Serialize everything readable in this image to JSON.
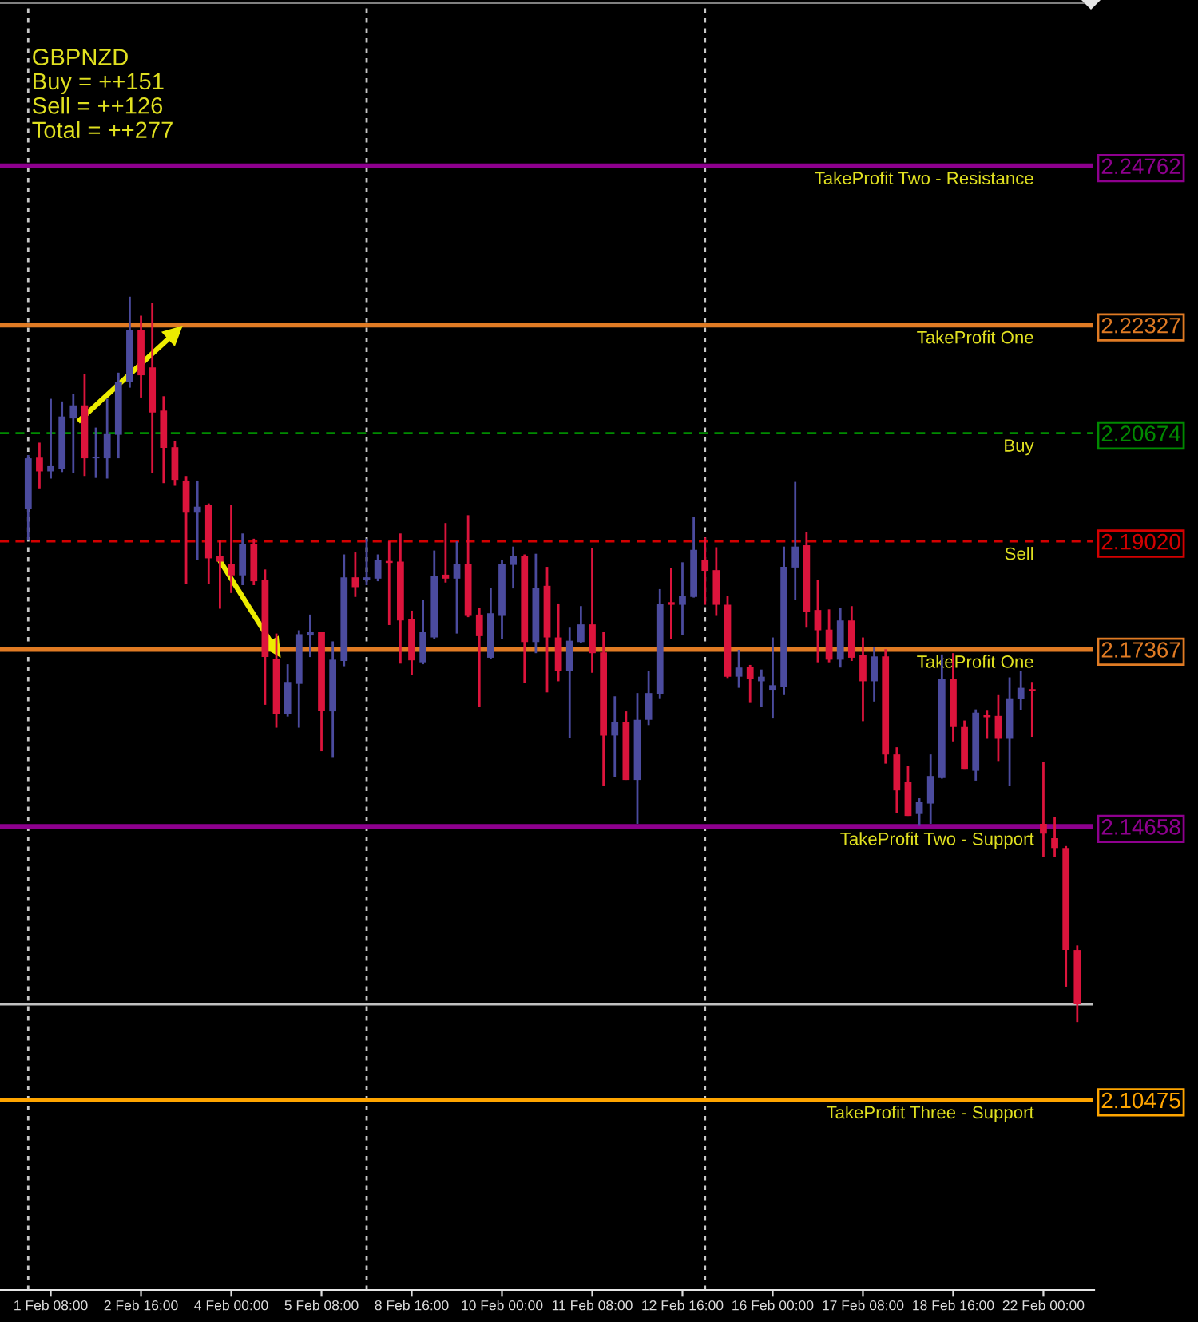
{
  "chart_data": {
    "type": "candlestick",
    "title": "GBPNZD",
    "annotations": [
      "Buy = ++151",
      "Sell = ++126",
      "Total = ++277"
    ],
    "categories": [
      null,
      null,
      "1 Feb 08:00",
      null,
      null,
      null,
      null,
      null,
      null,
      null,
      "2 Feb 16:00",
      null,
      null,
      null,
      null,
      null,
      null,
      null,
      "4 Feb 00:00",
      null,
      null,
      null,
      null,
      null,
      null,
      null,
      "5 Feb 08:00",
      null,
      null,
      null,
      null,
      null,
      null,
      null,
      "8 Feb 16:00",
      null,
      null,
      null,
      null,
      null,
      null,
      null,
      "10 Feb 00:00",
      null,
      null,
      null,
      null,
      null,
      null,
      null,
      "11 Feb 08:00",
      null,
      null,
      null,
      null,
      null,
      null,
      null,
      "12 Feb 16:00",
      null,
      null,
      null,
      null,
      null,
      null,
      null,
      "16 Feb 00:00",
      null,
      null,
      null,
      null,
      null,
      null,
      null,
      "17 Feb 08:00",
      null,
      null,
      null,
      null,
      null,
      null,
      null,
      "18 Feb 16:00",
      null,
      null,
      null,
      null,
      null,
      null,
      null,
      "22 Feb 00:00",
      null,
      null,
      null
    ],
    "ohlc": [
      [
        2.1951,
        2.2034,
        2.1904,
        2.2029
      ],
      [
        2.203,
        2.2053,
        2.1983,
        2.2009
      ],
      [
        2.2009,
        2.212,
        2.1998,
        2.2017
      ],
      [
        2.2013,
        2.2116,
        2.2008,
        2.2093
      ],
      [
        2.209,
        2.2127,
        2.2006,
        2.211
      ],
      [
        2.211,
        2.2158,
        2.2002,
        2.2029
      ],
      [
        2.2029,
        2.2076,
        2.1999,
        2.2031
      ],
      [
        2.2029,
        2.212,
        2.1998,
        2.2066
      ],
      [
        2.2065,
        2.216,
        2.2029,
        2.2146
      ],
      [
        2.2146,
        2.2276,
        2.2137,
        2.2225
      ],
      [
        2.2225,
        2.2247,
        2.2122,
        2.2156
      ],
      [
        2.2168,
        2.2266,
        2.2006,
        2.2099
      ],
      [
        2.2102,
        2.2124,
        2.1991,
        2.2045
      ],
      [
        2.2046,
        2.2055,
        2.1987,
        2.1996
      ],
      [
        2.1995,
        2.2002,
        2.1837,
        2.1947
      ],
      [
        2.1947,
        2.1995,
        2.1874,
        2.1955
      ],
      [
        2.1958,
        2.196,
        2.1837,
        2.1876
      ],
      [
        2.188,
        2.1903,
        2.1799,
        2.1871
      ],
      [
        2.1867,
        2.1958,
        2.1823,
        2.185
      ],
      [
        2.185,
        2.1914,
        2.1835,
        2.1898
      ],
      [
        2.1898,
        2.1906,
        2.1835,
        2.1841
      ],
      [
        2.1843,
        2.1859,
        2.1652,
        2.1725
      ],
      [
        2.1722,
        2.1761,
        2.1617,
        2.1638
      ],
      [
        2.1638,
        2.1714,
        2.1634,
        2.1687
      ],
      [
        2.1684,
        2.1766,
        2.1617,
        2.176
      ],
      [
        2.1758,
        2.179,
        2.1725,
        2.1763
      ],
      [
        2.1763,
        2.1763,
        2.1581,
        2.1642
      ],
      [
        2.1642,
        2.1749,
        2.1572,
        2.1721
      ],
      [
        2.1719,
        2.1882,
        2.1711,
        2.1847
      ],
      [
        2.1847,
        2.1885,
        2.1817,
        2.1832
      ],
      [
        2.1843,
        2.1906,
        2.1835,
        2.1847
      ],
      [
        2.1845,
        2.1882,
        2.1841,
        2.1874
      ],
      [
        2.1872,
        2.1902,
        2.1774,
        2.1869
      ],
      [
        2.1871,
        2.1914,
        2.1715,
        2.1781
      ],
      [
        2.1783,
        2.1796,
        2.1698,
        2.172
      ],
      [
        2.1717,
        2.1812,
        2.1714,
        2.1763
      ],
      [
        2.1755,
        2.1888,
        2.1753,
        2.1849
      ],
      [
        2.1851,
        2.193,
        2.1839,
        2.1845
      ],
      [
        2.1845,
        2.1902,
        2.1761,
        2.1867
      ],
      [
        2.1867,
        2.1942,
        2.1786,
        2.1788
      ],
      [
        2.179,
        2.18,
        2.1649,
        2.1757
      ],
      [
        2.1724,
        2.1831,
        2.1722,
        2.1792
      ],
      [
        2.1788,
        2.1874,
        2.1753,
        2.1867
      ],
      [
        2.1866,
        2.1894,
        2.183,
        2.188
      ],
      [
        2.188,
        2.1882,
        2.1685,
        2.1748
      ],
      [
        2.1748,
        2.1883,
        2.1731,
        2.1831
      ],
      [
        2.1834,
        2.1863,
        2.1671,
        2.1755
      ],
      [
        2.1755,
        2.1807,
        2.1688,
        2.1704
      ],
      [
        2.1704,
        2.177,
        2.1601,
        2.175
      ],
      [
        2.1748,
        2.1803,
        2.1747,
        2.1775
      ],
      [
        2.1775,
        2.1892,
        2.1701,
        2.1731
      ],
      [
        2.1732,
        2.1763,
        2.1528,
        2.1605
      ],
      [
        2.1605,
        2.1665,
        2.1542,
        2.1626
      ],
      [
        2.1626,
        2.1642,
        2.1537,
        2.1537
      ],
      [
        2.1537,
        2.167,
        2.147,
        2.1629
      ],
      [
        2.1629,
        2.1704,
        2.1621,
        2.167
      ],
      [
        2.1669,
        2.1829,
        2.1662,
        2.1807
      ],
      [
        2.1809,
        2.1861,
        2.1753,
        2.1805
      ],
      [
        2.1805,
        2.187,
        2.1759,
        2.1818
      ],
      [
        2.1817,
        2.1939,
        2.1816,
        2.1889
      ],
      [
        2.1873,
        2.1908,
        2.1805,
        2.1857
      ],
      [
        2.1858,
        2.1893,
        2.1788,
        2.1805
      ],
      [
        2.1805,
        2.1818,
        2.1693,
        2.1695
      ],
      [
        2.1695,
        2.1736,
        2.1678,
        2.1709
      ],
      [
        2.171,
        2.1713,
        2.1656,
        2.1691
      ],
      [
        2.1688,
        2.1706,
        2.1649,
        2.1695
      ],
      [
        2.1675,
        2.1755,
        2.1631,
        2.1682
      ],
      [
        2.168,
        2.1894,
        2.1668,
        2.1863
      ],
      [
        2.1862,
        2.1993,
        2.1812,
        2.1894
      ],
      [
        2.1896,
        2.1916,
        2.177,
        2.1794
      ],
      [
        2.1797,
        2.1843,
        2.1717,
        2.1766
      ],
      [
        2.1767,
        2.1798,
        2.1717,
        2.1721
      ],
      [
        2.1721,
        2.18,
        2.1709,
        2.1781
      ],
      [
        2.1781,
        2.1803,
        2.1719,
        2.1724
      ],
      [
        2.1728,
        2.1755,
        2.1627,
        2.1688
      ],
      [
        2.1688,
        2.174,
        2.1657,
        2.1726
      ],
      [
        2.1726,
        2.1737,
        2.1562,
        2.1576
      ],
      [
        2.1576,
        2.1587,
        2.1487,
        2.1521
      ],
      [
        2.1534,
        2.1558,
        2.1482,
        2.1482
      ],
      [
        2.1485,
        2.1509,
        2.1467,
        2.1503
      ],
      [
        2.1501,
        2.1576,
        2.147,
        2.1543
      ],
      [
        2.1541,
        2.1729,
        2.1539,
        2.1691
      ],
      [
        2.1691,
        2.1731,
        2.1596,
        2.1618
      ],
      [
        2.1618,
        2.1628,
        2.1554,
        2.1554
      ],
      [
        2.1551,
        2.1645,
        2.1536,
        2.164
      ],
      [
        2.1636,
        2.1643,
        2.16,
        2.1633
      ],
      [
        2.1635,
        2.1668,
        2.1566,
        2.16
      ],
      [
        2.16,
        2.1694,
        2.1528,
        2.1662
      ],
      [
        2.1661,
        2.1704,
        2.1644,
        2.1678
      ],
      [
        2.1676,
        2.1687,
        2.1603,
        2.1673
      ],
      [
        2.147,
        2.1565,
        2.1419,
        2.1455
      ],
      [
        2.1448,
        2.148,
        2.1419,
        2.1433
      ],
      [
        2.1433,
        2.1436,
        2.1221,
        2.1277
      ],
      [
        2.1277,
        2.1284,
        2.1167,
        2.1194
      ]
    ],
    "colors": [
      "#4b4b9e",
      "#dc143c",
      "#4b4b9e",
      "#4b4b9e",
      "#4b4b9e",
      "#dc143c",
      "#4b4b9e",
      "#4b4b9e",
      "#4b4b9e",
      "#4b4b9e",
      "#dc143c",
      "#dc143c",
      "#dc143c",
      "#dc143c",
      "#dc143c",
      "#4b4b9e",
      "#dc143c",
      "#dc143c",
      "#dc143c",
      "#4b4b9e",
      "#dc143c",
      "#dc143c",
      "#dc143c",
      "#4b4b9e",
      "#4b4b9e",
      "#4b4b9e",
      "#dc143c",
      "#4b4b9e",
      "#4b4b9e",
      "#dc143c",
      "#4b4b9e",
      "#4b4b9e",
      "#dc143c",
      "#dc143c",
      "#dc143c",
      "#4b4b9e",
      "#4b4b9e",
      "#dc143c",
      "#4b4b9e",
      "#dc143c",
      "#dc143c",
      "#4b4b9e",
      "#4b4b9e",
      "#4b4b9e",
      "#dc143c",
      "#4b4b9e",
      "#dc143c",
      "#dc143c",
      "#4b4b9e",
      "#4b4b9e",
      "#dc143c",
      "#dc143c",
      "#4b4b9e",
      "#dc143c",
      "#4b4b9e",
      "#4b4b9e",
      "#4b4b9e",
      "#dc143c",
      "#4b4b9e",
      "#4b4b9e",
      "#dc143c",
      "#dc143c",
      "#dc143c",
      "#4b4b9e",
      "#dc143c",
      "#4b4b9e",
      "#4b4b9e",
      "#4b4b9e",
      "#4b4b9e",
      "#dc143c",
      "#dc143c",
      "#dc143c",
      "#4b4b9e",
      "#dc143c",
      "#dc143c",
      "#4b4b9e",
      "#dc143c",
      "#dc143c",
      "#dc143c",
      "#4b4b9e",
      "#4b4b9e",
      "#4b4b9e",
      "#dc143c",
      "#dc143c",
      "#4b4b9e",
      "#dc143c",
      "#dc143c",
      "#4b4b9e",
      "#4b4b9e",
      "#dc143c",
      "#dc143c",
      "#dc143c",
      "#dc143c",
      "#dc143c"
    ],
    "ylim": [
      2.0757,
      2.2725
    ],
    "yticks": [
      2.10475,
      2.14658,
      2.17367,
      {
        "value": 2.1902,
        "label": "2.19020"
      },
      2.20674,
      2.22327,
      2.24762
    ],
    "grid": "x",
    "ref_lines": [
      {
        "axis": "y",
        "value": 2.24762,
        "label": "TakeProfit Two - Resistance",
        "color": "#8e008e",
        "line_style": "solid"
      },
      {
        "axis": "y",
        "value": 2.22327,
        "label": "TakeProfit One",
        "color": "#e07b24",
        "line_style": "solid"
      },
      {
        "axis": "y",
        "value": 2.20674,
        "label": "Buy",
        "color": "#008a00",
        "line_style": "dashed"
      },
      {
        "axis": "y",
        "value": 2.1902,
        "label": "Sell",
        "color": "#d40000",
        "line_style": "dashed"
      },
      {
        "axis": "y",
        "value": 2.17367,
        "label": "TakeProfit One",
        "color": "#e07b24",
        "line_style": "solid"
      },
      {
        "axis": "y",
        "value": 2.14658,
        "label": "TakeProfit Two - Support",
        "color": "#8e008e",
        "line_style": "solid"
      },
      {
        "axis": "y",
        "value": 2.10475,
        "label": "TakeProfit Three - Support",
        "color": "#ffa500",
        "line_style": "solid"
      },
      {
        "axis": "y",
        "value": 2.1194,
        "color": "#c0c0c0",
        "line_style": "solid"
      }
    ]
  }
}
